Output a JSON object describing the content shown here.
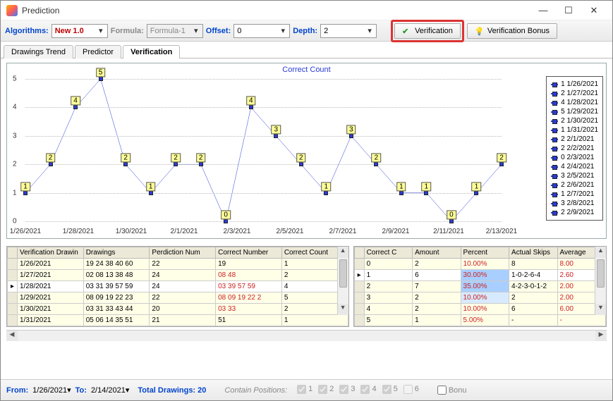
{
  "window": {
    "title": "Prediction"
  },
  "toolbar": {
    "algorithms_label": "Algorithms:",
    "algorithm_value": "New 1.0",
    "formula_label": "Formula:",
    "formula_value": "Formula-1",
    "offset_label": "Offset:",
    "offset_value": "0",
    "depth_label": "Depth:",
    "depth_value": "2",
    "verification_btn": "Verification",
    "bonus_btn": "Verification Bonus"
  },
  "tabs": {
    "t1": "Drawings Trend",
    "t2": "Predictor",
    "t3": "Verification"
  },
  "chart": {
    "title": "Correct Count",
    "ylim": [
      0,
      5
    ],
    "ytick_step": 1,
    "x_labels": [
      "1/26/2021",
      "1/28/2021",
      "1/30/2021",
      "2/1/2021",
      "2/3/2021",
      "2/5/2021",
      "2/7/2021",
      "2/9/2021",
      "2/11/2021",
      "2/13/2021"
    ],
    "values": [
      1,
      2,
      4,
      5,
      2,
      1,
      2,
      2,
      0,
      4,
      3,
      2,
      1,
      3,
      2,
      1,
      1,
      0,
      1,
      2
    ],
    "line_color": "#2a3bd6",
    "label_bg": "#ffff99",
    "legend": [
      "1 1/26/2021",
      "2 1/27/2021",
      "4 1/28/2021",
      "5 1/29/2021",
      "2 1/30/2021",
      "1 1/31/2021",
      "2 2/1/2021",
      "2 2/2/2021",
      "0 2/3/2021",
      "4 2/4/2021",
      "3 2/5/2021",
      "2 2/6/2021",
      "1 2/7/2021",
      "3 2/8/2021",
      "2 2/9/2021"
    ]
  },
  "left_grid": {
    "headers": [
      "Verification Drawin",
      "Drawings",
      "Perdiction Num",
      "Correct Number",
      "Correct Count"
    ],
    "rows": [
      {
        "d": "1/26/2021",
        "dr": "19 24 38 40 60",
        "pn": "22",
        "cn": "19",
        "cc": "1",
        "red": false
      },
      {
        "d": "1/27/2021",
        "dr": "02 08 13 38 48",
        "pn": "24",
        "cn": "08 48",
        "cc": "2",
        "red": true
      },
      {
        "d": "1/28/2021",
        "dr": "03 31 39 57 59",
        "pn": "24",
        "cn": "03 39 57 59",
        "cc": "4",
        "red": true,
        "sel": true
      },
      {
        "d": "1/29/2021",
        "dr": "08 09 19 22 23",
        "pn": "22",
        "cn": "08 09 19 22 2",
        "cc": "5",
        "red": true
      },
      {
        "d": "1/30/2021",
        "dr": "03 31 33 43 44",
        "pn": "20",
        "cn": "03 33",
        "cc": "2",
        "red": true
      },
      {
        "d": "1/31/2021",
        "dr": "05 06 14 35 51",
        "pn": "21",
        "cn": "51",
        "cc": "1",
        "red": false
      }
    ]
  },
  "right_grid": {
    "headers": [
      "Correct C",
      "Amount",
      "Percent",
      "Actual Skips",
      "Average"
    ],
    "rows": [
      {
        "c": "0",
        "a": "2",
        "p": "10.00%",
        "s": "8",
        "av": "8.00",
        "pcls": ""
      },
      {
        "c": "1",
        "a": "6",
        "p": "30.00%",
        "s": "1-0-2-6-4",
        "av": "2.60",
        "pcls": "pct-hi",
        "sel": true
      },
      {
        "c": "2",
        "a": "7",
        "p": "35.00%",
        "s": "4-2-3-0-1-2",
        "av": "2.00",
        "pcls": "pct-hi"
      },
      {
        "c": "3",
        "a": "2",
        "p": "10.00%",
        "s": "2",
        "av": "2.00",
        "pcls": "pct-md"
      },
      {
        "c": "4",
        "a": "2",
        "p": "10.00%",
        "s": "6",
        "av": "6.00",
        "pcls": ""
      },
      {
        "c": "5",
        "a": "1",
        "p": "5.00%",
        "s": "-",
        "av": "-",
        "pcls": ""
      }
    ]
  },
  "footer": {
    "from_label": "From:",
    "from_value": "1/26/2021",
    "to_label": "To:",
    "to_value": "2/14/2021",
    "total_label": "Total Drawings: 20",
    "contain_label": "Contain Positions:",
    "positions": [
      "1",
      "2",
      "3",
      "4",
      "5",
      "6"
    ],
    "bonus_label": "Bonu"
  }
}
